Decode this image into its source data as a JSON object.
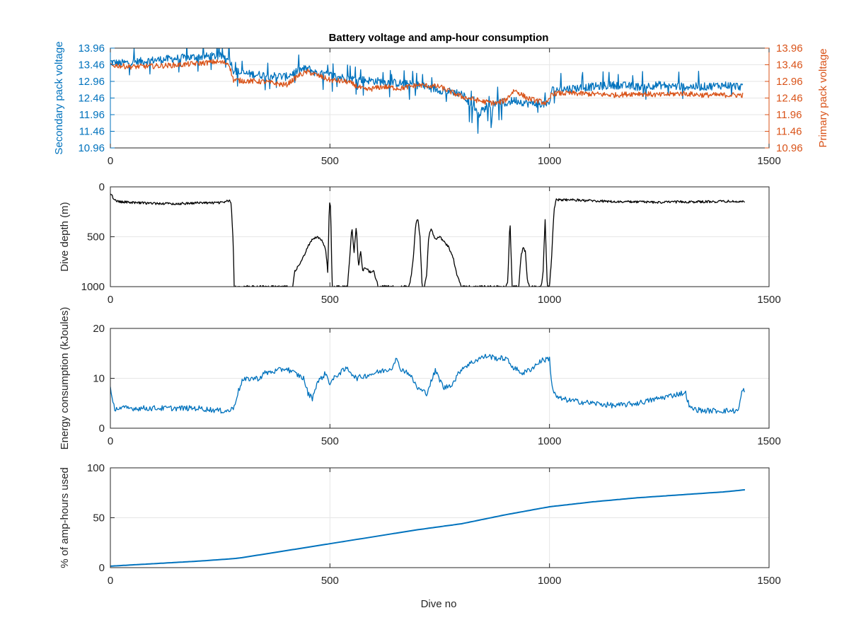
{
  "figure": {
    "xlabel": "Dive no"
  },
  "chart_data": [
    {
      "type": "line",
      "title": "Battery voltage and amp-hour consumption",
      "xlabel": "",
      "ylabel": "Secondary pack voltage",
      "ylabel_right": "Primary pack voltage",
      "xlim": [
        0,
        1500
      ],
      "ylim": [
        10.96,
        13.96
      ],
      "x_ticks": [
        "0",
        "500",
        "1000",
        "1500"
      ],
      "y_ticks": [
        "10.96",
        "11.46",
        "11.96",
        "12.46",
        "12.96",
        "13.46",
        "13.96"
      ],
      "y_ticks_right": [
        "10.96",
        "11.46",
        "11.96",
        "12.46",
        "12.96",
        "13.46",
        "13.96"
      ],
      "grid": true,
      "series": [
        {
          "axis": "left",
          "color": "#0072BD",
          "x": [
            0,
            20,
            60,
            100,
            150,
            200,
            240,
            270,
            280,
            300,
            350,
            400,
            430,
            450,
            470,
            500,
            540,
            580,
            620,
            660,
            700,
            750,
            800,
            820,
            840,
            860,
            880,
            900,
            920,
            950,
            980,
            995,
            1000,
            1005,
            1050,
            1100,
            1150,
            1200,
            1250,
            1300,
            1350,
            1400,
            1440
          ],
          "y": [
            13.55,
            13.5,
            13.55,
            13.6,
            13.65,
            13.7,
            13.72,
            13.7,
            13.3,
            13.2,
            13.15,
            13.1,
            13.3,
            13.35,
            13.2,
            13.15,
            13.05,
            13.0,
            12.95,
            12.9,
            12.85,
            12.7,
            12.6,
            12.3,
            12.0,
            12.25,
            12.35,
            12.3,
            12.4,
            12.3,
            12.3,
            12.25,
            12.3,
            12.7,
            12.75,
            12.8,
            12.85,
            12.8,
            12.85,
            12.8,
            12.8,
            12.85,
            12.8
          ]
        },
        {
          "axis": "right",
          "color": "#D95319",
          "x": [
            0,
            50,
            100,
            150,
            200,
            240,
            270,
            280,
            300,
            350,
            400,
            430,
            450,
            480,
            500,
            540,
            580,
            620,
            660,
            700,
            750,
            800,
            850,
            880,
            900,
            920,
            950,
            980,
            995,
            1000,
            1005,
            1050,
            1100,
            1150,
            1200,
            1250,
            1300,
            1350,
            1400,
            1440
          ],
          "y": [
            13.45,
            13.4,
            13.42,
            13.45,
            13.5,
            13.55,
            13.5,
            13.0,
            12.98,
            12.95,
            12.85,
            13.15,
            13.25,
            13.1,
            13.0,
            12.95,
            12.7,
            12.8,
            12.75,
            12.85,
            12.8,
            12.5,
            12.35,
            12.3,
            12.4,
            12.7,
            12.45,
            12.35,
            12.3,
            12.4,
            12.6,
            12.6,
            12.58,
            12.55,
            12.6,
            12.55,
            12.6,
            12.55,
            12.55,
            12.55
          ]
        }
      ]
    },
    {
      "type": "line",
      "title": "",
      "xlabel": "",
      "ylabel": "Dive depth (m)",
      "xlim": [
        0,
        1500
      ],
      "ylim": [
        0,
        1000
      ],
      "y_reversed": true,
      "x_ticks": [
        "0",
        "500",
        "1000",
        "1500"
      ],
      "y_ticks": [
        "0",
        "500",
        "1000"
      ],
      "grid": true,
      "series": [
        {
          "color": "#000000",
          "x": [
            0,
            5,
            10,
            20,
            60,
            100,
            150,
            200,
            250,
            270,
            275,
            280,
            282,
            300,
            350,
            400,
            415,
            420,
            430,
            440,
            450,
            460,
            470,
            480,
            485,
            490,
            495,
            498,
            500,
            502,
            505,
            510,
            515,
            520,
            530,
            540,
            545,
            550,
            555,
            560,
            565,
            570,
            575,
            580,
            590,
            600,
            610,
            620,
            640,
            660,
            670,
            680,
            685,
            690,
            695,
            700,
            705,
            710,
            715,
            720,
            725,
            730,
            740,
            750,
            760,
            770,
            780,
            790,
            800,
            810,
            830,
            860,
            880,
            900,
            905,
            910,
            915,
            920,
            925,
            930,
            935,
            940,
            945,
            950,
            955,
            960,
            970,
            980,
            985,
            990,
            995,
            1000,
            1005,
            1010,
            1015,
            1050,
            1100,
            1150,
            1200,
            1250,
            1300,
            1350,
            1400,
            1445
          ],
          "y": [
            60,
            100,
            130,
            150,
            160,
            165,
            170,
            160,
            160,
            140,
            150,
            600,
            1000,
            1000,
            1000,
            1000,
            1000,
            850,
            780,
            700,
            600,
            520,
            500,
            530,
            570,
            620,
            850,
            300,
            100,
            300,
            1000,
            1000,
            1000,
            1000,
            1000,
            1000,
            700,
            400,
            650,
            400,
            800,
            650,
            850,
            800,
            850,
            850,
            1000,
            1000,
            1000,
            1000,
            1000,
            1000,
            900,
            700,
            380,
            320,
            500,
            1000,
            1000,
            900,
            500,
            420,
            520,
            500,
            550,
            600,
            700,
            900,
            1000,
            1000,
            1000,
            1000,
            1000,
            1000,
            950,
            320,
            1000,
            1000,
            1000,
            1000,
            700,
            600,
            650,
            950,
            1000,
            1000,
            1000,
            1000,
            900,
            330,
            1000,
            1000,
            700,
            250,
            130,
            130,
            140,
            150,
            150,
            155,
            150,
            150,
            145,
            150
          ]
        }
      ]
    },
    {
      "type": "line",
      "title": "",
      "xlabel": "",
      "ylabel": "Energy consumption (kJoules)",
      "xlim": [
        0,
        1500
      ],
      "ylim": [
        0,
        20
      ],
      "x_ticks": [
        "0",
        "500",
        "1000",
        "1500"
      ],
      "y_ticks": [
        "0",
        "10",
        "20"
      ],
      "grid": true,
      "series": [
        {
          "color": "#0072BD",
          "x": [
            0,
            5,
            10,
            50,
            100,
            150,
            200,
            250,
            270,
            280,
            290,
            300,
            320,
            340,
            350,
            380,
            400,
            420,
            440,
            450,
            460,
            470,
            480,
            490,
            500,
            520,
            540,
            560,
            580,
            600,
            620,
            640,
            650,
            660,
            680,
            700,
            720,
            740,
            760,
            780,
            800,
            820,
            840,
            860,
            880,
            900,
            920,
            940,
            960,
            980,
            1000,
            1005,
            1010,
            1020,
            1050,
            1100,
            1150,
            1200,
            1250,
            1300,
            1310,
            1320,
            1350,
            1400,
            1430,
            1440,
            1445
          ],
          "y": [
            8,
            5,
            4,
            4,
            4,
            4,
            4,
            3.5,
            3.5,
            4,
            7,
            9.5,
            10,
            10,
            11,
            11.5,
            12,
            11,
            10,
            7,
            6,
            9,
            10,
            11,
            9,
            11,
            12,
            10,
            10.5,
            11,
            11.5,
            12,
            14,
            12,
            11,
            8,
            7,
            11.5,
            8,
            9,
            12,
            13,
            14,
            14.5,
            14,
            14,
            12,
            11,
            12,
            13.5,
            14,
            9,
            7,
            6,
            5.5,
            5,
            4.5,
            5,
            6,
            7,
            7,
            4,
            3.5,
            3.5,
            3.5,
            8,
            7
          ]
        }
      ]
    },
    {
      "type": "line",
      "title": "",
      "xlabel": "Dive no",
      "ylabel": "% of amp-hours used",
      "xlim": [
        0,
        1500
      ],
      "ylim": [
        0,
        100
      ],
      "x_ticks": [
        "0",
        "500",
        "1000",
        "1500"
      ],
      "y_ticks": [
        "0",
        "50",
        "100"
      ],
      "grid": true,
      "series": [
        {
          "color": "#0072BD",
          "x": [
            0,
            100,
            200,
            280,
            300,
            400,
            500,
            600,
            700,
            800,
            900,
            1000,
            1100,
            1200,
            1300,
            1400,
            1445
          ],
          "y": [
            1.5,
            4,
            6.5,
            9,
            10,
            17,
            24,
            31,
            38,
            44,
            53,
            61,
            66,
            70,
            73,
            76,
            78
          ]
        }
      ]
    }
  ]
}
